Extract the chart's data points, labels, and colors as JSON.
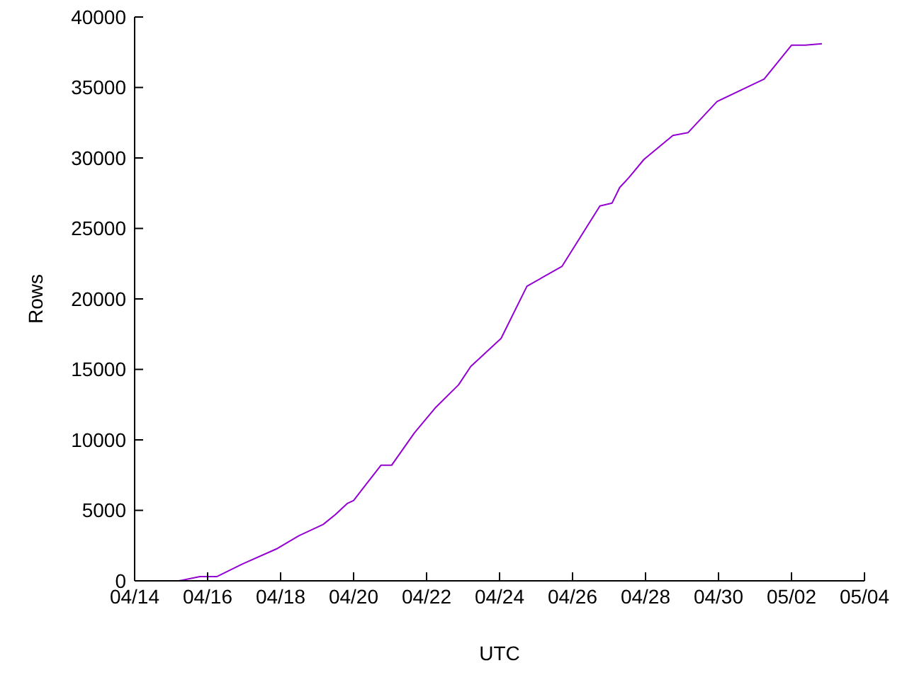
{
  "chart_data": {
    "type": "line",
    "xlabel": "UTC",
    "ylabel": "Rows",
    "x": [
      "--04-15T05:00",
      "--04-15T19:00",
      "--04-16T06:00",
      "--04-16T23:00",
      "--04-17T22:00",
      "--04-18T12:00",
      "--04-18T20:00",
      "--04-19T04:00",
      "--04-19T12:00",
      "--04-19T20:00",
      "--04-20T00:00",
      "--04-20T18:00",
      "--04-21T01:00",
      "--04-21T16:00",
      "--04-22T06:00",
      "--04-22T21:00",
      "--04-23T05:00",
      "--04-23T08:00",
      "--04-24T01:00",
      "--04-24T18:00",
      "--04-25T17:00",
      "--04-26T18:00",
      "--04-27T02:00",
      "--04-27T07:00",
      "--04-27T13:00",
      "--04-27T23:00",
      "--04-28T18:00",
      "--04-29T04:00",
      "--04-29T23:00",
      "--05-01T06:00",
      "--05-02T00:00",
      "--05-02T09:00",
      "--05-02T20:00"
    ],
    "series": [
      {
        "color": "#9400d3",
        "values": [
          0,
          300,
          300,
          1200,
          2300,
          3200,
          3600,
          4000,
          4700,
          5500,
          5700,
          8200,
          8200,
          10500,
          12300,
          13900,
          15200,
          15500,
          17200,
          20900,
          22300,
          26600,
          26800,
          27900,
          28600,
          29900,
          31600,
          31800,
          34000,
          35600,
          38000,
          38000,
          38100
        ]
      }
    ],
    "xlim": [
      "--04-14",
      "--05-04"
    ],
    "xticks": [
      {
        "value": "--04-14",
        "label": "04/14"
      },
      {
        "value": "--04-16",
        "label": "04/16"
      },
      {
        "value": "--04-18",
        "label": "04/18"
      },
      {
        "value": "--04-20",
        "label": "04/20"
      },
      {
        "value": "--04-22",
        "label": "04/22"
      },
      {
        "value": "--04-24",
        "label": "04/24"
      },
      {
        "value": "--04-26",
        "label": "04/26"
      },
      {
        "value": "--04-28",
        "label": "04/28"
      },
      {
        "value": "--04-30",
        "label": "04/30"
      },
      {
        "value": "--05-02",
        "label": "05/02"
      },
      {
        "value": "--05-04",
        "label": "05/04"
      }
    ],
    "ylim": [
      0,
      40000
    ],
    "yticks": [
      0,
      5000,
      10000,
      15000,
      20000,
      25000,
      30000,
      35000,
      40000
    ],
    "grid": false,
    "legend": false,
    "marker": "none",
    "line_style": "solid"
  }
}
